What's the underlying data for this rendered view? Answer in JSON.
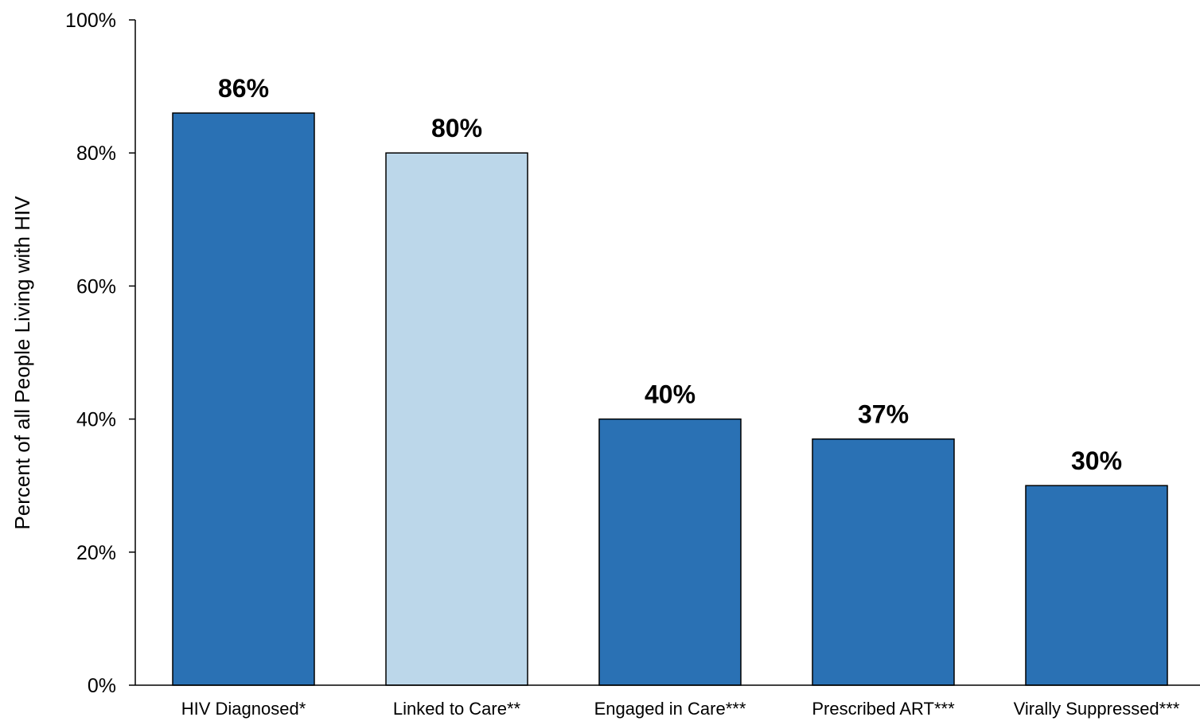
{
  "chart_data": {
    "type": "bar",
    "title": "",
    "xlabel": "",
    "ylabel": "Percent of all People Living with HIV",
    "ylim": [
      0,
      100
    ],
    "yticks": [
      0,
      20,
      40,
      60,
      80,
      100
    ],
    "ytick_labels": [
      "0%",
      "20%",
      "40%",
      "60%",
      "80%",
      "100%"
    ],
    "categories": [
      "HIV Diagnosed*",
      "Linked to Care**",
      "Engaged in Care***",
      "Prescribed ART***",
      "Virally Suppressed***"
    ],
    "values": [
      86,
      80,
      40,
      37,
      30
    ],
    "value_labels": [
      "86%",
      "80%",
      "40%",
      "37%",
      "30%"
    ],
    "bar_colors": [
      "#2a71b4",
      "#bcd7ea",
      "#2a71b4",
      "#2a71b4",
      "#2a71b4"
    ],
    "grid": false,
    "legend": "none"
  }
}
